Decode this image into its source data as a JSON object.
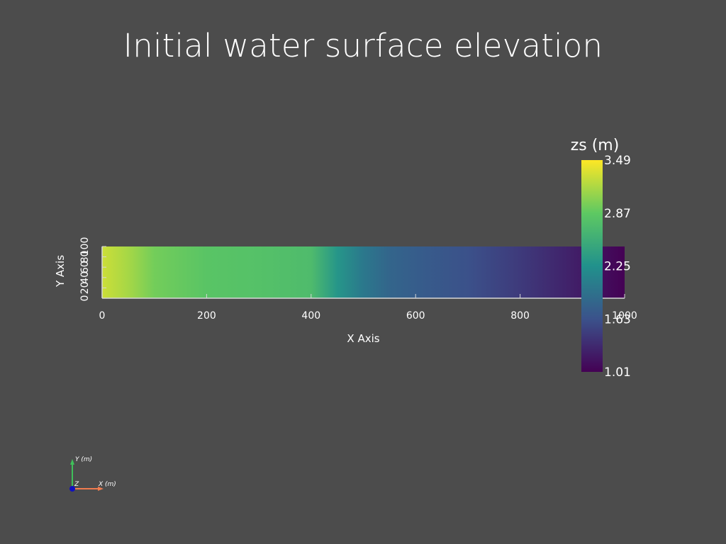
{
  "title": "Initial water surface elevation",
  "chart_data": {
    "type": "heatmap",
    "title": "Initial water surface elevation",
    "xlabel": "X Axis",
    "ylabel": "Y Axis",
    "xlim": [
      0,
      1000
    ],
    "ylim": [
      0,
      100
    ],
    "x_ticks": [
      0,
      200,
      400,
      600,
      800,
      1000
    ],
    "y_ticks": [
      0,
      20,
      40,
      60,
      80,
      100
    ],
    "profile": {
      "x": [
        0,
        50,
        100,
        200,
        300,
        400,
        450,
        500,
        550,
        600,
        700,
        800,
        900,
        1000
      ],
      "zs": [
        3.3,
        3.15,
        2.95,
        2.82,
        2.78,
        2.72,
        2.3,
        2.0,
        1.82,
        1.74,
        1.62,
        1.45,
        1.25,
        1.01
      ]
    },
    "colorbar": {
      "title": "zs (m)",
      "min": 1.01,
      "max": 3.49,
      "tick_values": [
        1.01,
        1.63,
        2.25,
        2.87,
        3.49
      ],
      "tick_labels": [
        "1.01",
        "1.63",
        "2.25",
        "2.87",
        "3.49"
      ],
      "colormap": "viridis",
      "colormap_stops": [
        "#440154",
        "#3b528b",
        "#21918c",
        "#5ec962",
        "#fde725"
      ]
    },
    "grid": false
  },
  "orientation": {
    "y_label": "Y (m)",
    "x_label": "X (m)",
    "z_label": "Z",
    "y_color": "#3fbf5a",
    "x_color": "#f07c4f",
    "z_color": "#1010c0"
  },
  "colors": {
    "background": "#4c4c4c",
    "axis": "#d8d8d8",
    "text": "#ffffff"
  }
}
